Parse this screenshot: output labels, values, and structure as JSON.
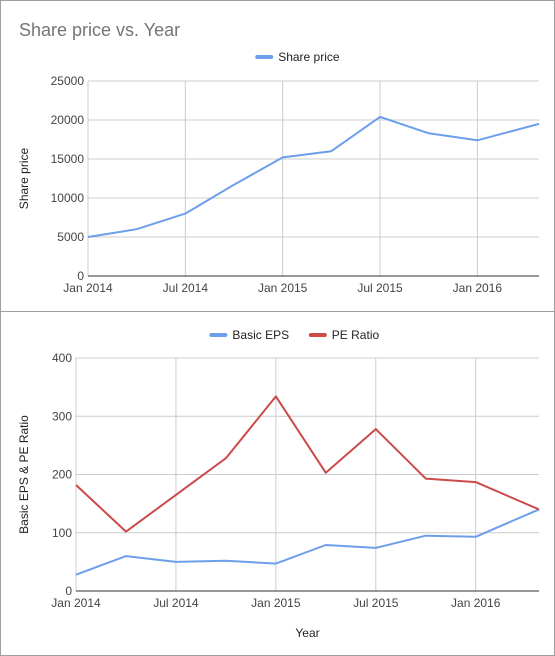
{
  "colors": {
    "blue": "#6d9eeb",
    "red": "#cc4a4a",
    "grid": "#cccccc",
    "baseline": "#333333"
  },
  "chart_data": [
    {
      "type": "line",
      "title": "Share price vs. Year",
      "xlabel": "",
      "ylabel": "Share price",
      "x_ticks": [
        "Jan 2014",
        "Jul 2014",
        "Jan 2015",
        "Jul 2015",
        "Jan 2016"
      ],
      "x_tick_months": [
        0,
        6,
        12,
        18,
        24
      ],
      "x_range_months": [
        0,
        27.8
      ],
      "y_ticks": [
        "0",
        "5000",
        "10000",
        "15000",
        "20000",
        "25000"
      ],
      "ylim": [
        0,
        25000
      ],
      "legend": "top",
      "grid": true,
      "series": [
        {
          "name": "Share price",
          "color": "#6d9eeb",
          "x": [
            "Jan 2014",
            "Apr 2014",
            "Jul 2014",
            "Oct 2014",
            "Jan 2015",
            "Apr 2015",
            "Jul 2015",
            "Oct 2015",
            "Jan 2016",
            "Apr 2016"
          ],
          "x_months": [
            0,
            3,
            6,
            9,
            12,
            15,
            18,
            21,
            24,
            27.8
          ],
          "values": [
            5000,
            6000,
            8000,
            11700,
            15200,
            16000,
            20400,
            18300,
            17400,
            19500
          ]
        }
      ]
    },
    {
      "type": "line",
      "title": "",
      "xlabel": "Year",
      "ylabel": "Basic EPS & PE Ratio",
      "x_ticks": [
        "Jan 2014",
        "Jul 2014",
        "Jan 2015",
        "Jul 2015",
        "Jan 2016"
      ],
      "x_tick_months": [
        0,
        6,
        12,
        18,
        24
      ],
      "x_range_months": [
        0,
        27.8
      ],
      "y_ticks": [
        "0",
        "100",
        "200",
        "300",
        "400"
      ],
      "ylim": [
        0,
        400
      ],
      "legend": "top",
      "grid": true,
      "series": [
        {
          "name": "Basic EPS",
          "color": "#6d9eeb",
          "x": [
            "Jan 2014",
            "Apr 2014",
            "Jul 2014",
            "Oct 2014",
            "Jan 2015",
            "Apr 2015",
            "Jul 2015",
            "Oct 2015",
            "Jan 2016",
            "Apr 2016"
          ],
          "x_months": [
            0,
            3,
            6,
            9,
            12,
            15,
            18,
            21,
            24,
            27.8
          ],
          "values": [
            28,
            60,
            50,
            52,
            47,
            79,
            74,
            95,
            93,
            140
          ]
        },
        {
          "name": "PE Ratio",
          "color": "#cc4a4a",
          "x": [
            "Jan 2014",
            "Apr 2014",
            "Jul 2014",
            "Oct 2014",
            "Jan 2015",
            "Apr 2015",
            "Jul 2015",
            "Oct 2015",
            "Jan 2016",
            "Apr 2016"
          ],
          "x_months": [
            0,
            3,
            6,
            9,
            12,
            15,
            18,
            21,
            24,
            27.8
          ],
          "values": [
            182,
            102,
            165,
            228,
            334,
            203,
            278,
            193,
            187,
            140
          ]
        }
      ]
    }
  ]
}
